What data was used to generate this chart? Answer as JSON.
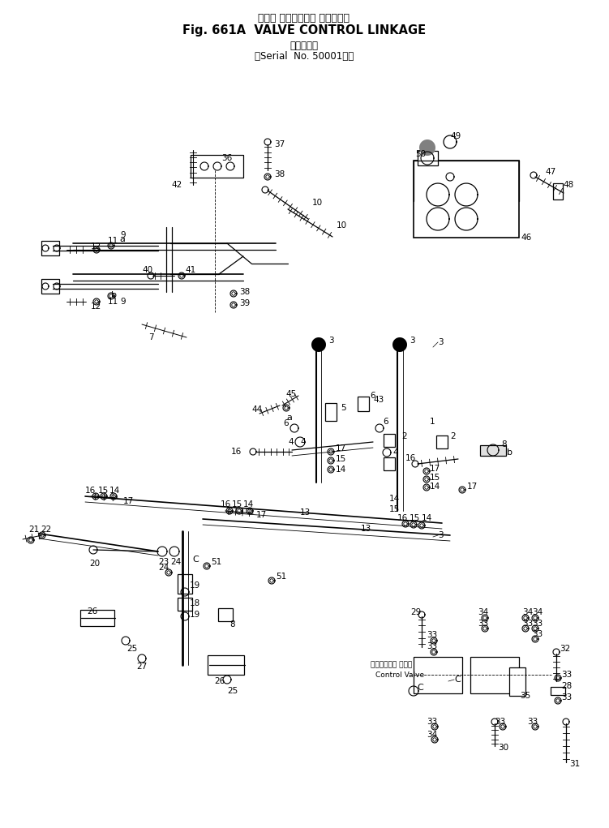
{
  "title_jp": "バルブ コントロール リンケージ",
  "title_en": "Fig. 661A  VALVE CONTROL LINKAGE",
  "subtitle": "(適用号機\nSerial  No. 50001～)",
  "bg_color": "#ffffff"
}
